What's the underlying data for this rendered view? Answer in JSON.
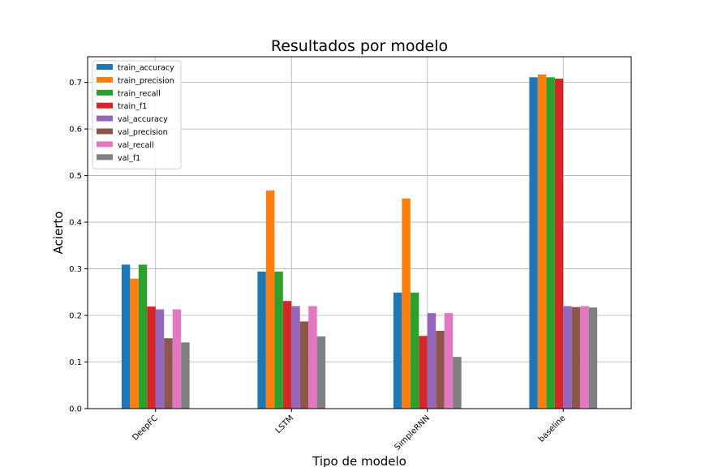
{
  "chart_data": {
    "type": "bar",
    "title": "Resultados por modelo",
    "xlabel": "Tipo de modelo",
    "ylabel": "Acierto",
    "categories": [
      "DeepFC",
      "LSTM",
      "SimpleRNN",
      "baseline"
    ],
    "ylim": [
      0,
      0.755
    ],
    "yticks": [
      "0.0",
      "0.1",
      "0.2",
      "0.3",
      "0.4",
      "0.5",
      "0.6",
      "0.7"
    ],
    "grid": true,
    "legend_position": "top-left",
    "series": [
      {
        "name": "train_accuracy",
        "color": "#1f77b4",
        "values": [
          0.309,
          0.294,
          0.249,
          0.711
        ]
      },
      {
        "name": "train_precision",
        "color": "#ff7f0e",
        "values": [
          0.279,
          0.468,
          0.451,
          0.717
        ]
      },
      {
        "name": "train_recall",
        "color": "#2ca02c",
        "values": [
          0.309,
          0.294,
          0.249,
          0.711
        ]
      },
      {
        "name": "train_f1",
        "color": "#d62728",
        "values": [
          0.219,
          0.231,
          0.156,
          0.708
        ]
      },
      {
        "name": "val_accuracy",
        "color": "#9467bd",
        "values": [
          0.213,
          0.22,
          0.205,
          0.22
        ]
      },
      {
        "name": "val_precision",
        "color": "#8c564b",
        "values": [
          0.151,
          0.187,
          0.167,
          0.218
        ]
      },
      {
        "name": "val_recall",
        "color": "#e377c2",
        "values": [
          0.213,
          0.22,
          0.205,
          0.22
        ]
      },
      {
        "name": "val_f1",
        "color": "#7f7f7f",
        "values": [
          0.142,
          0.155,
          0.111,
          0.217
        ]
      }
    ]
  }
}
